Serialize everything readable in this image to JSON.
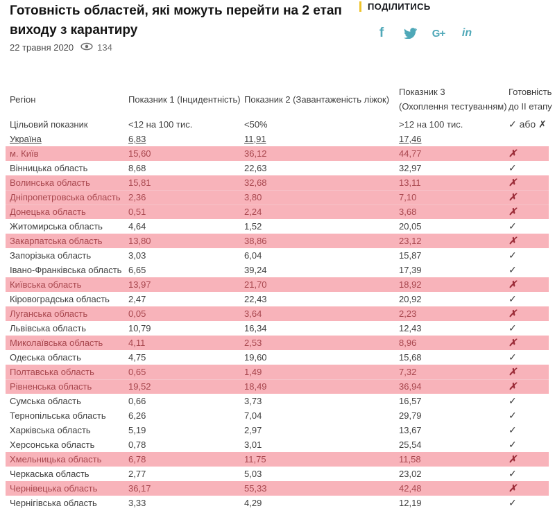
{
  "header": {
    "title": "Готовність областей, які можуть перейти на 2 етап виходу з карантиру",
    "date": "22 травня 2020",
    "views": "134"
  },
  "share": {
    "label": "ПОДІЛИТИСЬ",
    "accent_color": "#eec32a",
    "icon_color": "#4fa8b8",
    "icons": [
      {
        "name": "facebook-icon",
        "glyph": "f"
      },
      {
        "name": "twitter-icon",
        "glyph": "bird"
      },
      {
        "name": "googleplus-icon",
        "glyph": "G+"
      },
      {
        "name": "linkedin-icon",
        "glyph": "in"
      }
    ]
  },
  "table": {
    "columns": [
      "Регіон",
      "Показник 1 (Інцидентність)",
      "Показник 2 (Завантаженість ліжок)",
      "Показник 3\n(Охоплення тестуванням)",
      "Готовність\nдо II етапу"
    ],
    "target_row": {
      "label": "Цільовий показник",
      "v1": "<12 на 100 тис.",
      "v2": "<50%",
      "v3": ">12 на 100 тис.",
      "ready": "✓ або ✗"
    },
    "ukraine_row": {
      "label": "Україна",
      "v1": "6,83",
      "v2": "11,91",
      "v3": "17,46",
      "ready": ""
    },
    "check_symbol": "✓",
    "cross_symbol": "✗",
    "highlight_color": "#f8b3ba",
    "rows": [
      {
        "region": "м. Київ",
        "v1": "15,60",
        "v2": "36,12",
        "v3": "44,77",
        "ready": "✗",
        "highlight": true
      },
      {
        "region": "Вінницька область",
        "v1": "8,68",
        "v2": "22,63",
        "v3": "32,97",
        "ready": "✓",
        "highlight": false
      },
      {
        "region": "Волинська область",
        "v1": "15,81",
        "v2": "32,68",
        "v3": "13,11",
        "ready": "✗",
        "highlight": true
      },
      {
        "region": "Дніпропетровська область",
        "v1": "2,36",
        "v2": "3,80",
        "v3": "7,10",
        "ready": "✗",
        "highlight": true
      },
      {
        "region": "Донецька область",
        "v1": "0,51",
        "v2": "2,24",
        "v3": "3,68",
        "ready": "✗",
        "highlight": true
      },
      {
        "region": "Житомирська область",
        "v1": "4,64",
        "v2": "1,52",
        "v3": "20,05",
        "ready": "✓",
        "highlight": false
      },
      {
        "region": "Закарпатська область",
        "v1": "13,80",
        "v2": "38,86",
        "v3": "23,12",
        "ready": "✗",
        "highlight": true
      },
      {
        "region": "Запорізька область",
        "v1": "3,03",
        "v2": "6,04",
        "v3": "15,87",
        "ready": "✓",
        "highlight": false
      },
      {
        "region": "Івано-Франківська область",
        "v1": "6,65",
        "v2": "39,24",
        "v3": "17,39",
        "ready": "✓",
        "highlight": false
      },
      {
        "region": "Київська область",
        "v1": "13,97",
        "v2": "21,70",
        "v3": "18,92",
        "ready": "✗",
        "highlight": true
      },
      {
        "region": "Кіровоградська область",
        "v1": "2,47",
        "v2": "22,43",
        "v3": "20,92",
        "ready": "✓",
        "highlight": false
      },
      {
        "region": "Луганська область",
        "v1": "0,05",
        "v2": "3,64",
        "v3": "2,23",
        "ready": "✗",
        "highlight": true
      },
      {
        "region": "Львівська область",
        "v1": "10,79",
        "v2": "16,34",
        "v3": "12,43",
        "ready": "✓",
        "highlight": false
      },
      {
        "region": "Миколаївська область",
        "v1": "4,11",
        "v2": "2,53",
        "v3": "8,96",
        "ready": "✗",
        "highlight": true
      },
      {
        "region": "Одеська область",
        "v1": "4,75",
        "v2": "19,60",
        "v3": "15,68",
        "ready": "✓",
        "highlight": false
      },
      {
        "region": "Полтавська область",
        "v1": "0,65",
        "v2": "1,49",
        "v3": "7,32",
        "ready": "✗",
        "highlight": true
      },
      {
        "region": "Рівненська область",
        "v1": "19,52",
        "v2": "18,49",
        "v3": "36,94",
        "ready": "✗",
        "highlight": true
      },
      {
        "region": "Сумська область",
        "v1": "0,66",
        "v2": "3,73",
        "v3": "16,57",
        "ready": "✓",
        "highlight": false
      },
      {
        "region": "Тернопільська область",
        "v1": "6,26",
        "v2": "7,04",
        "v3": "29,79",
        "ready": "✓",
        "highlight": false
      },
      {
        "region": "Харківська область",
        "v1": "5,19",
        "v2": "2,97",
        "v3": "13,67",
        "ready": "✓",
        "highlight": false
      },
      {
        "region": "Херсонська область",
        "v1": "0,78",
        "v2": "3,01",
        "v3": "25,54",
        "ready": "✓",
        "highlight": false
      },
      {
        "region": "Хмельницька область",
        "v1": "6,78",
        "v2": "11,75",
        "v3": "11,58",
        "ready": "✗",
        "highlight": true
      },
      {
        "region": "Черкаська область",
        "v1": "2,77",
        "v2": "5,03",
        "v3": "23,02",
        "ready": "✓",
        "highlight": false
      },
      {
        "region": "Чернівецька область",
        "v1": "36,17",
        "v2": "55,33",
        "v3": "42,48",
        "ready": "✗",
        "highlight": true
      },
      {
        "region": "Чернігівська область",
        "v1": "3,33",
        "v2": "4,29",
        "v3": "12,19",
        "ready": "✓",
        "highlight": false
      }
    ]
  }
}
